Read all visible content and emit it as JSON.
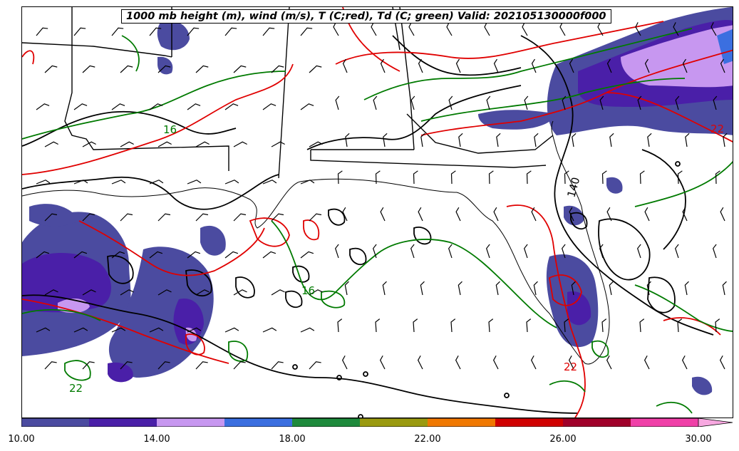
{
  "title": "1000 mb height (m), wind (m/s), T (C;red), Td (C; green) Valid: 202105130000f000",
  "colorbar": {
    "colors": [
      "#4b4ba0",
      "#4a1fa8",
      "#c797f0",
      "#3b6fe0",
      "#1e8a3c",
      "#9a9a10",
      "#f07800",
      "#d00000",
      "#a0002a",
      "#f040a8",
      "#f7a8e0"
    ],
    "ticks": [
      "10.00",
      "14.00",
      "18.00",
      "22.00",
      "26.00",
      "30.00"
    ]
  },
  "contour_labels": {
    "td_16_a": "16",
    "td_16_b": "16",
    "td_22_a": "22",
    "t_22_a": "22",
    "t_22_b": "22",
    "height_140": "140"
  },
  "line_colors": {
    "temperature": "#e00000",
    "dewpoint": "#007a00",
    "height": "#000000"
  }
}
